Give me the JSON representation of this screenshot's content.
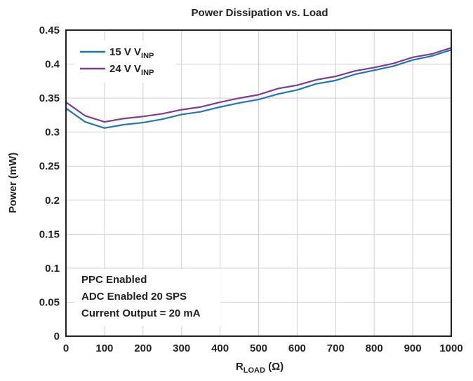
{
  "chart_data": {
    "type": "line",
    "title": "Power Dissipation vs. Load",
    "xlabel": {
      "main": "R",
      "sub": "LOAD",
      "suffix": " (Ω)"
    },
    "ylabel": "Power (mW)",
    "xlim": [
      0,
      1000
    ],
    "ylim": [
      0,
      0.45
    ],
    "x_ticks": [
      0,
      100,
      200,
      300,
      400,
      500,
      600,
      700,
      800,
      900,
      1000
    ],
    "x_tick_labels": [
      "0",
      "100",
      "200",
      "300",
      "400",
      "500",
      "600",
      "700",
      "800",
      "900",
      "1000"
    ],
    "y_ticks": [
      0,
      0.05,
      0.1,
      0.15,
      0.2,
      0.25,
      0.3,
      0.35,
      0.4,
      0.45
    ],
    "y_tick_labels": [
      "0",
      "0.05",
      "0.1",
      "0.15",
      "0.2",
      "0.25",
      "0.3",
      "0.35",
      "0.4",
      "0.45"
    ],
    "grid": true,
    "legend_position": "top-left",
    "x": [
      0,
      50,
      100,
      150,
      200,
      250,
      300,
      350,
      400,
      450,
      500,
      550,
      600,
      650,
      700,
      750,
      800,
      850,
      900,
      950,
      1000
    ],
    "series": [
      {
        "name": "15 V V",
        "name_sub": "INP",
        "color": "#1f77b4",
        "values": [
          0.335,
          0.315,
          0.306,
          0.311,
          0.314,
          0.319,
          0.326,
          0.33,
          0.337,
          0.343,
          0.348,
          0.356,
          0.362,
          0.371,
          0.376,
          0.385,
          0.391,
          0.397,
          0.406,
          0.412,
          0.421
        ]
      },
      {
        "name": "24 V V",
        "name_sub": "INP",
        "color": "#7b3f8f",
        "values": [
          0.344,
          0.324,
          0.315,
          0.32,
          0.323,
          0.327,
          0.333,
          0.337,
          0.344,
          0.35,
          0.355,
          0.364,
          0.369,
          0.377,
          0.382,
          0.39,
          0.395,
          0.401,
          0.41,
          0.415,
          0.424
        ]
      }
    ],
    "annotations": [
      "PPC Enabled",
      "ADC Enabled 20 SPS",
      "Current Output = 20 mA"
    ]
  }
}
